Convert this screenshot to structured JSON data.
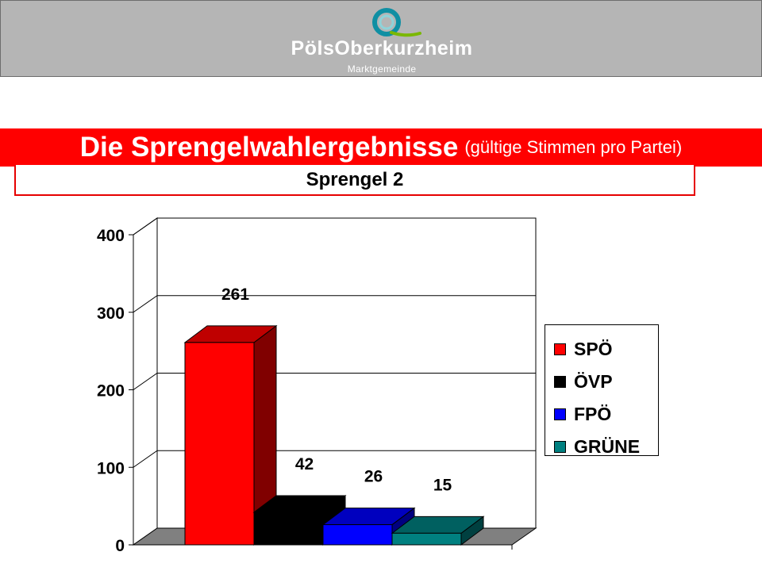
{
  "header": {
    "logo_name": "PölsOberkurzheim",
    "logo_sub": "Marktgemeinde",
    "colors": {
      "ring_dark": "#0f8fa3",
      "ring_light": "#8fd3d9",
      "accent_green": "#7ab800"
    }
  },
  "title": {
    "main": "Die Sprengelwahlergebnisse",
    "sub": "(gültige Stimmen pro Partei)"
  },
  "chart_data": {
    "type": "bar",
    "style": "3d",
    "title": "Sprengel 2",
    "xlabel": "",
    "ylabel": "",
    "categories": [
      "SPÖ",
      "ÖVP",
      "FPÖ",
      "GRÜNE"
    ],
    "values": [
      261,
      42,
      26,
      15
    ],
    "data_labels": [
      "261",
      "42",
      "26",
      "15"
    ],
    "colors": [
      "#ff0000",
      "#000000",
      "#0000ff",
      "#008080"
    ],
    "ylim": [
      0,
      400
    ],
    "yticks": [
      0,
      100,
      200,
      300,
      400
    ],
    "ytick_labels": [
      "0",
      "100",
      "200",
      "300",
      "400"
    ],
    "grid": true,
    "legend": "right"
  }
}
